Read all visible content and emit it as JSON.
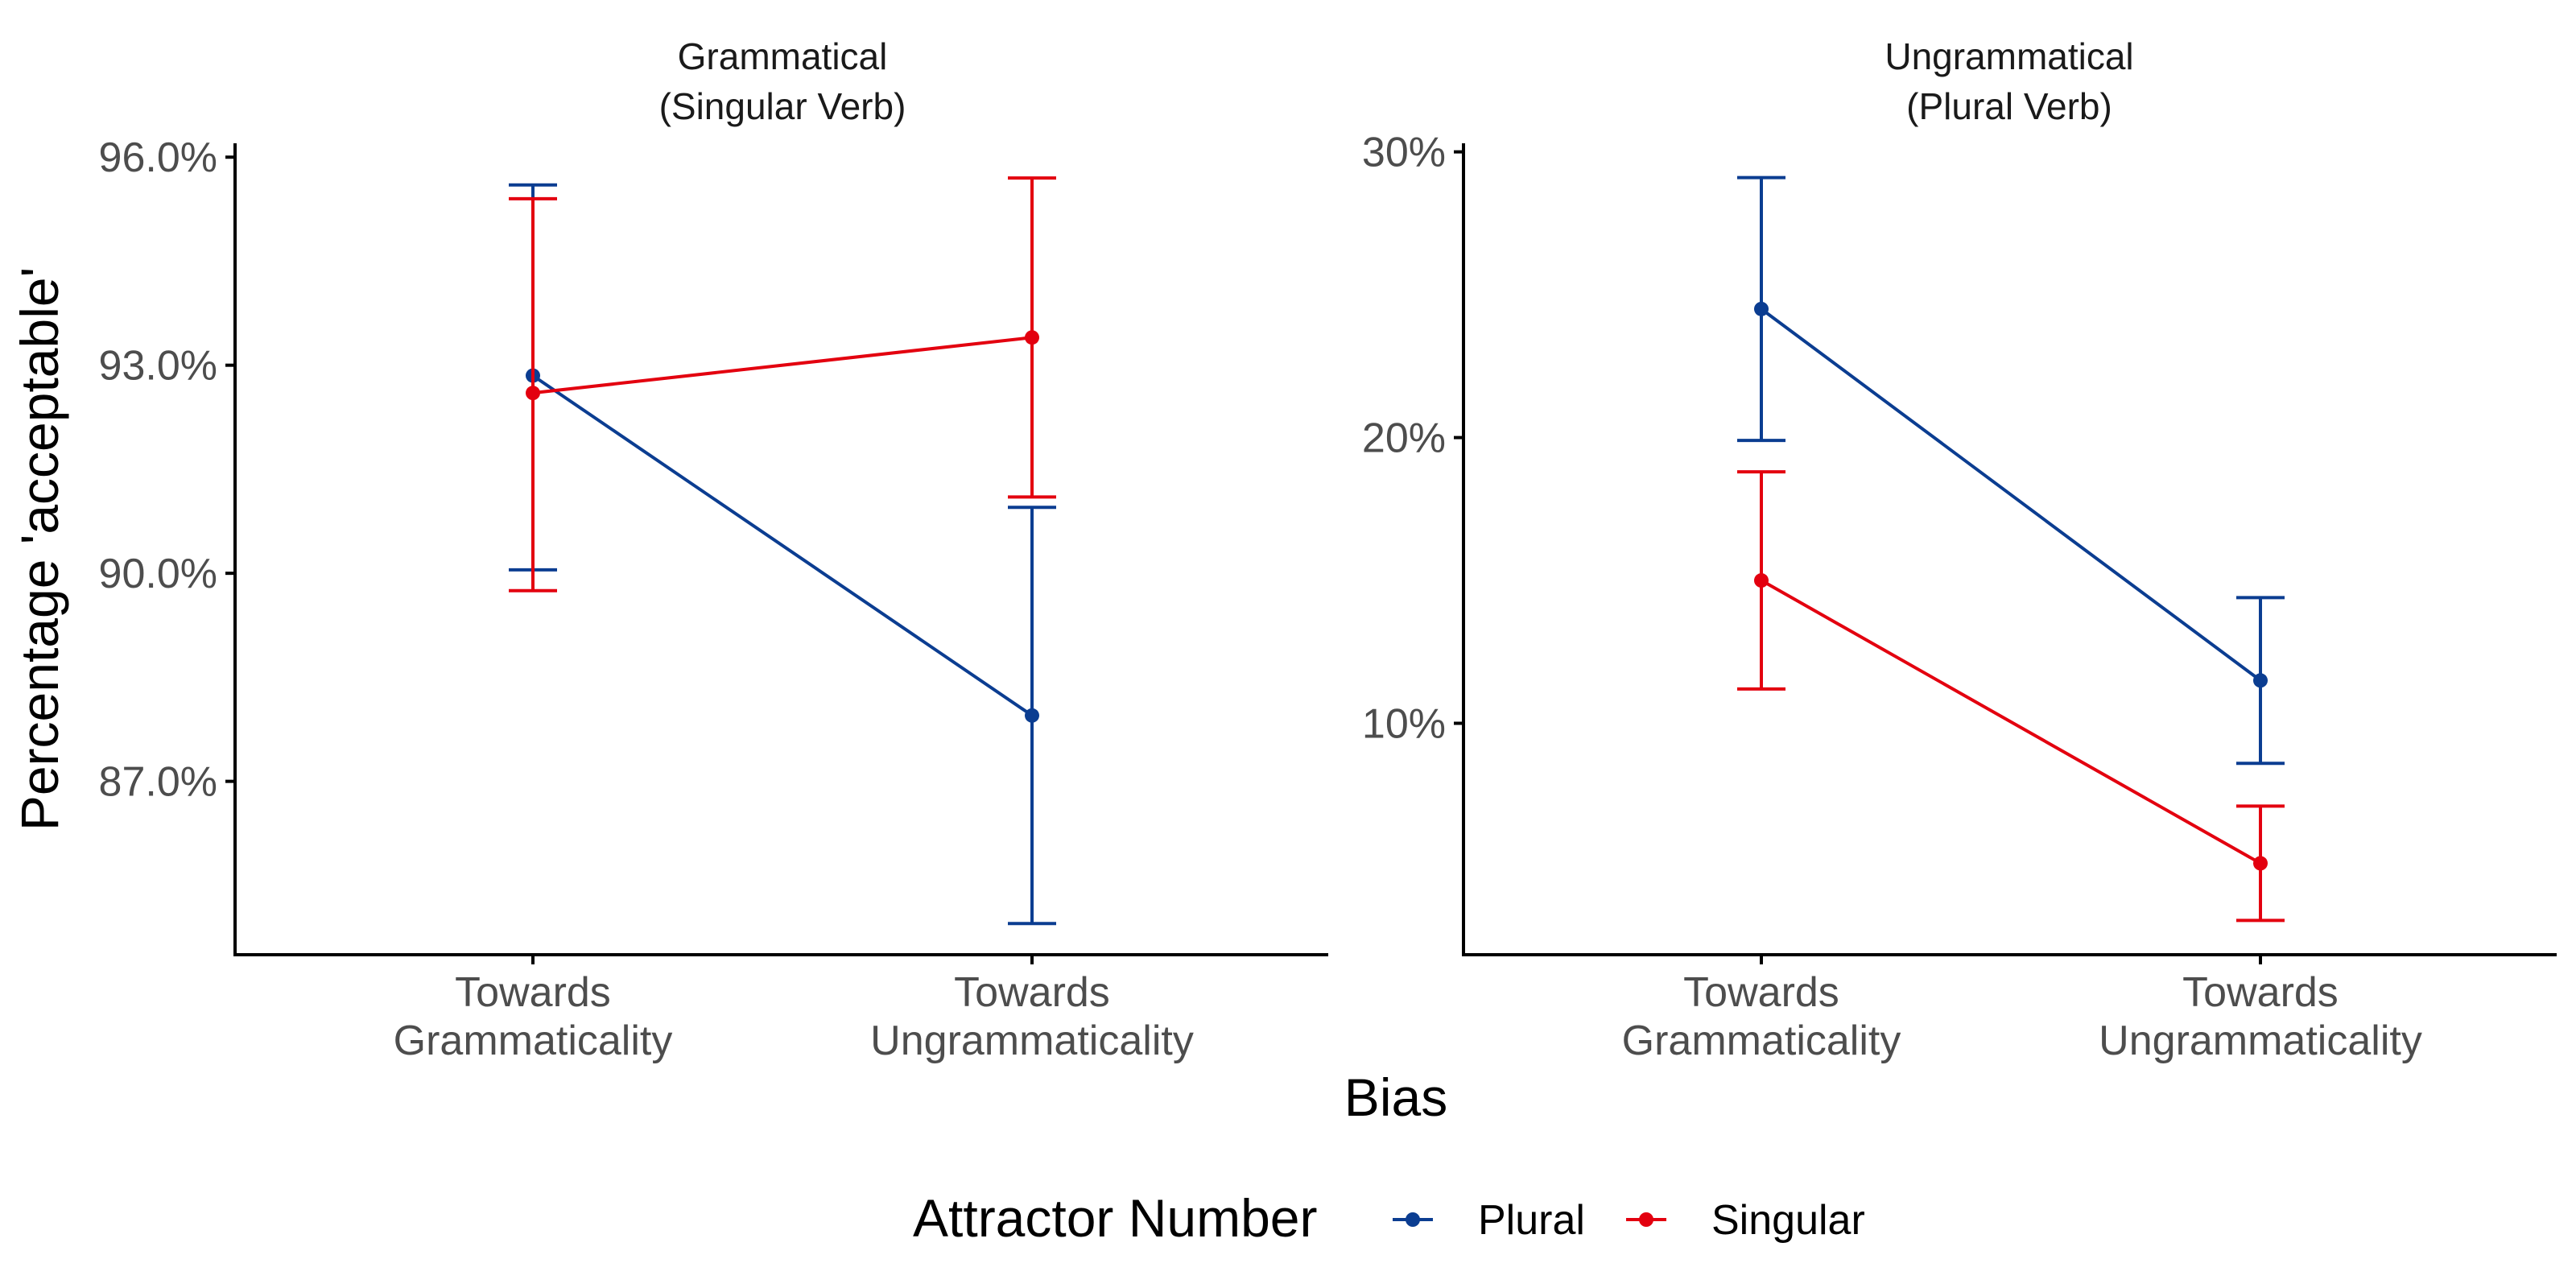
{
  "chart_data": {
    "type": "line",
    "xlabel": "Bias",
    "ylabel": "Percentage 'acceptable'",
    "categories": [
      "Towards\nGrammaticality",
      "Towards\nUngrammaticality"
    ],
    "legend": {
      "title": "Attractor Number",
      "position": "bottom",
      "entries": [
        {
          "name": "Plural",
          "color": "#0b3d91"
        },
        {
          "name": "Singular",
          "color": "#e3000f"
        }
      ]
    },
    "grid": false,
    "panels": [
      {
        "title": "Grammatical\n(Singular Verb)",
        "ylim": [
          84.5,
          96.2
        ],
        "yticks": [
          87,
          90,
          93,
          96
        ],
        "ytick_labels": [
          "87.0%",
          "90.0%",
          "93.0%",
          "96.0%"
        ],
        "series": [
          {
            "name": "Plural",
            "values": [
              92.85,
              87.95
            ],
            "error_low": [
              90.05,
              84.95
            ],
            "error_high": [
              95.6,
              90.95
            ]
          },
          {
            "name": "Singular",
            "values": [
              92.6,
              93.4
            ],
            "error_low": [
              89.75,
              91.1
            ],
            "error_high": [
              95.4,
              95.7
            ]
          }
        ]
      },
      {
        "title": "Ungrammatical\n(Plural Verb)",
        "ylim": [
          1.9,
          30.3
        ],
        "yticks": [
          10,
          20,
          30
        ],
        "ytick_labels": [
          "10%",
          "20%",
          "30%"
        ],
        "series": [
          {
            "name": "Plural",
            "values": [
              24.5,
              11.5
            ],
            "error_low": [
              19.9,
              8.6
            ],
            "error_high": [
              29.1,
              14.4
            ]
          },
          {
            "name": "Singular",
            "values": [
              15.0,
              5.1
            ],
            "error_low": [
              11.2,
              3.1
            ],
            "error_high": [
              18.8,
              7.1
            ]
          }
        ]
      }
    ]
  }
}
